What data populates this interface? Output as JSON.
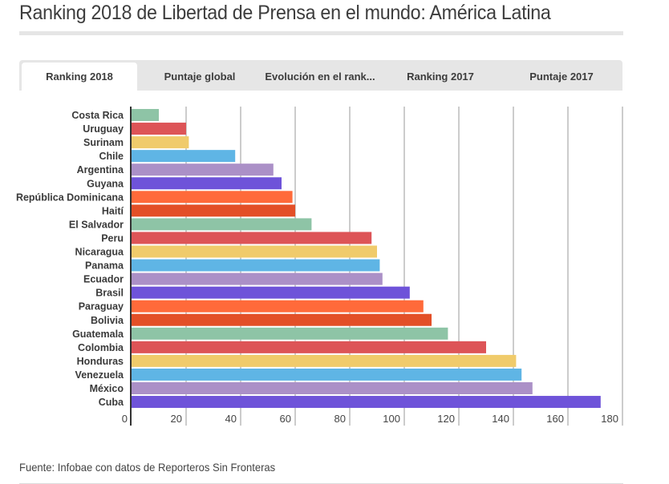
{
  "header": {
    "title": "Ranking 2018 de Libertad de Prensa en el mundo: América Latina"
  },
  "tabs": [
    {
      "label": "Ranking 2018",
      "active": true
    },
    {
      "label": "Puntaje global",
      "active": false
    },
    {
      "label": "Evolución en el rank...",
      "active": false
    },
    {
      "label": "Ranking 2017",
      "active": false
    },
    {
      "label": "Puntaje 2017",
      "active": false
    }
  ],
  "footer": {
    "source": "Fuente: Infobae con datos de Reporteros Sin Fronteras"
  },
  "chart_data": {
    "type": "bar",
    "orientation": "horizontal",
    "title": "Ranking 2018",
    "xlabel": "",
    "ylabel": "",
    "xlim": [
      0,
      180
    ],
    "xticks": [
      0,
      20,
      40,
      60,
      80,
      100,
      120,
      140,
      160,
      180
    ],
    "grid": true,
    "legend": "none",
    "categories": [
      "Costa Rica",
      "Uruguay",
      "Surinam",
      "Chile",
      "Argentina",
      "Guyana",
      "República Dominicana",
      "Haití",
      "El Salvador",
      "Peru",
      "Nicaragua",
      "Panama",
      "Ecuador",
      "Brasil",
      "Paraguay",
      "Bolivia",
      "Guatemala",
      "Colombia",
      "Honduras",
      "Venezuela",
      "México",
      "Cuba"
    ],
    "values": [
      10,
      20,
      21,
      38,
      52,
      55,
      59,
      60,
      66,
      88,
      90,
      91,
      92,
      102,
      107,
      110,
      116,
      130,
      141,
      143,
      147,
      172
    ],
    "colors": [
      "#8ec4a6",
      "#dd5457",
      "#f0cb6b",
      "#5fb5e5",
      "#ab90c7",
      "#6e53d9",
      "#ff6a3a",
      "#e34f27"
    ]
  }
}
